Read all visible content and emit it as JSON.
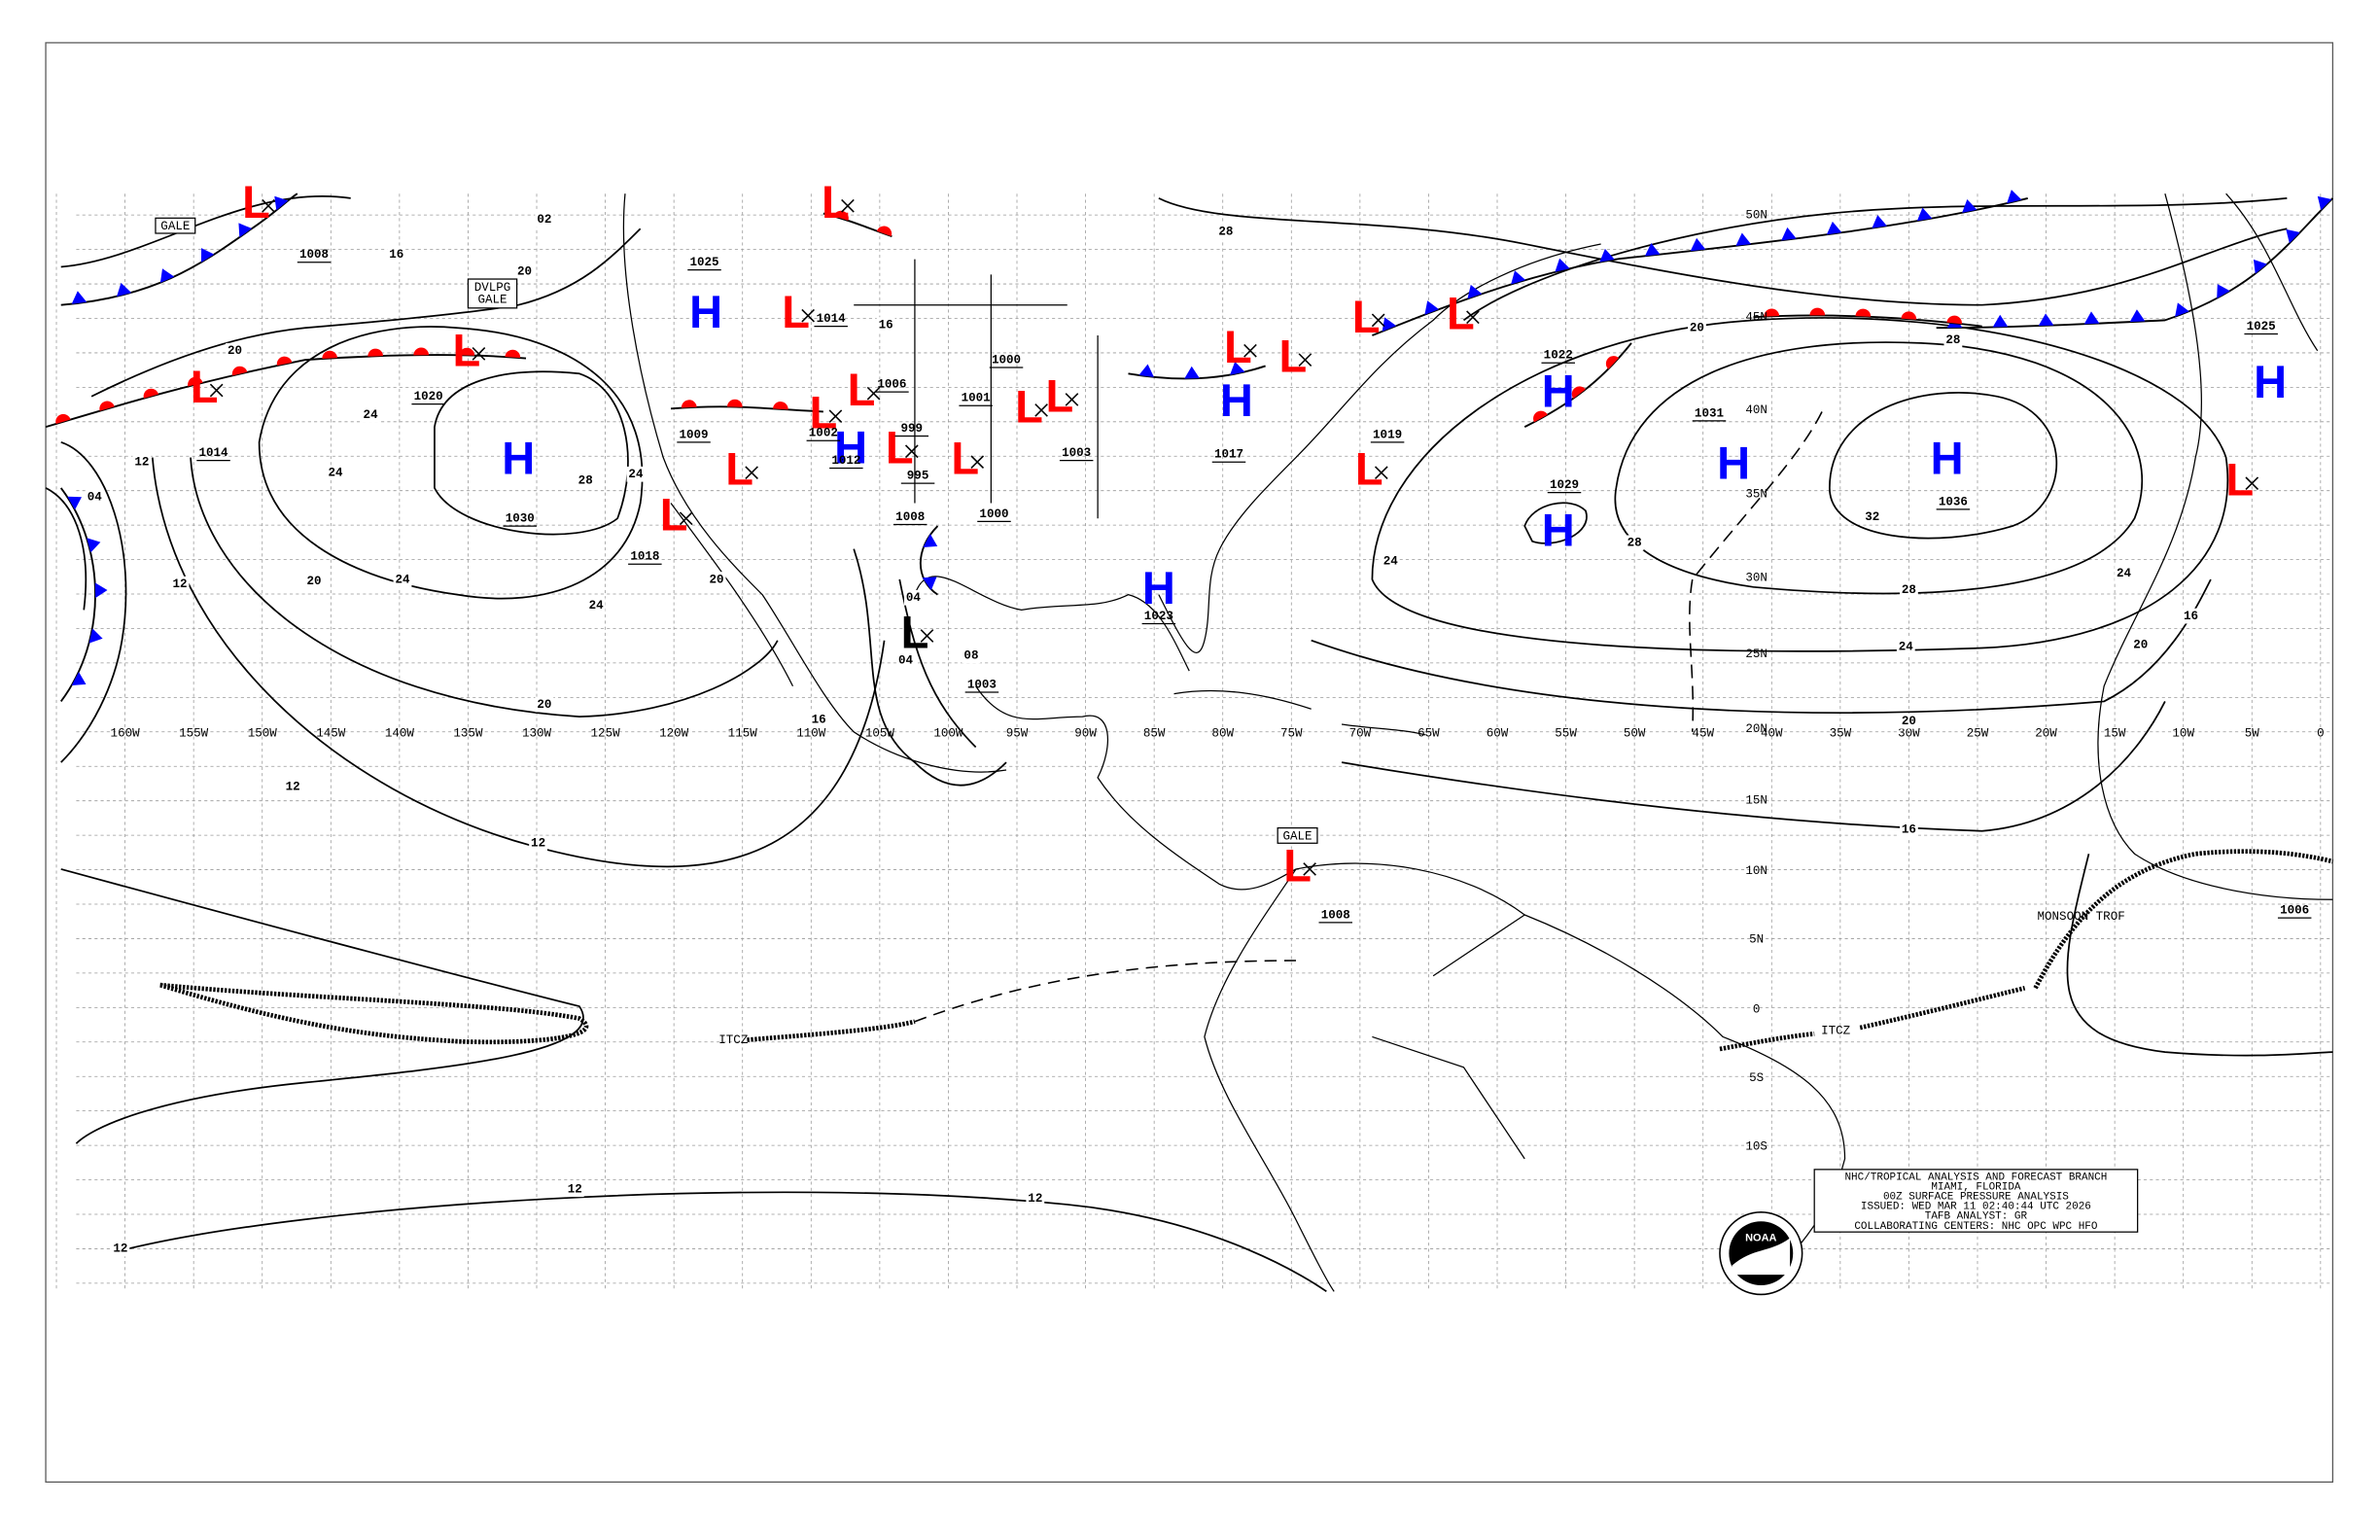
{
  "longitude_labels": [
    "160W",
    "155W",
    "150W",
    "145W",
    "140W",
    "135W",
    "130W",
    "125W",
    "120W",
    "115W",
    "110W",
    "105W",
    "100W",
    "95W",
    "90W",
    "85W",
    "80W",
    "75W",
    "70W",
    "65W",
    "60W",
    "55W",
    "50W",
    "45W",
    "40W",
    "35W",
    "30W",
    "25W",
    "20W",
    "15W",
    "10W",
    "5W",
    "0"
  ],
  "latitude_labels": [
    "50N",
    "45N",
    "40N",
    "35N",
    "30N",
    "25N",
    "20N",
    "15N",
    "10N",
    "5N",
    "0",
    "5S",
    "10S"
  ],
  "pressure_centers": [
    {
      "letter": "L",
      "color": "#ff0000"
    },
    {
      "letter": "L",
      "color": "#ff0000"
    },
    {
      "letter": "L",
      "color": "#ff0000"
    },
    {
      "letter": "L",
      "color": "#ff0000"
    },
    {
      "letter": "L",
      "color": "#ff0000"
    },
    {
      "letter": "L",
      "color": "#ff0000"
    },
    {
      "letter": "L",
      "color": "#ff0000"
    },
    {
      "letter": "L",
      "color": "#ff0000"
    },
    {
      "letter": "L",
      "color": "#ff0000"
    },
    {
      "letter": "L",
      "color": "#ff0000"
    },
    {
      "letter": "L",
      "color": "#ff0000"
    },
    {
      "letter": "L",
      "color": "#ff0000"
    },
    {
      "letter": "L",
      "color": "#ff0000"
    },
    {
      "letter": "L",
      "color": "#ff0000"
    },
    {
      "letter": "L",
      "color": "#ff0000"
    },
    {
      "letter": "L",
      "color": "#ff0000"
    },
    {
      "letter": "L",
      "color": "#ff0000"
    },
    {
      "letter": "L",
      "color": "#ff0000"
    },
    {
      "letter": "L",
      "color": "#ff0000"
    },
    {
      "letter": "L",
      "color": "#ff0000"
    },
    {
      "letter": "L",
      "color": "#000000"
    },
    {
      "letter": "H",
      "color": "#0000ff"
    },
    {
      "letter": "H",
      "color": "#0000ff"
    },
    {
      "letter": "H",
      "color": "#0000ff"
    },
    {
      "letter": "H",
      "color": "#0000ff"
    },
    {
      "letter": "H",
      "color": "#0000ff"
    },
    {
      "letter": "H",
      "color": "#0000ff"
    },
    {
      "letter": "H",
      "color": "#0000ff"
    },
    {
      "letter": "H",
      "color": "#0000ff"
    },
    {
      "letter": "H",
      "color": "#0000ff"
    },
    {
      "letter": "H",
      "color": "#0000ff"
    }
  ],
  "central_pressures": [
    "1008",
    "1020",
    "1014",
    "1030",
    "1018",
    "1009",
    "1025",
    "1002",
    "1014",
    "1012",
    "1006",
    "1000",
    "1001",
    "999",
    "995",
    "1000",
    "1008",
    "1003",
    "1017",
    "1003",
    "1023",
    "1019",
    "1022",
    "1029",
    "1031",
    "1036",
    "1025",
    "1008",
    "1006"
  ],
  "isobar_labels": [
    "16",
    "20",
    "02",
    "20",
    "24",
    "24",
    "28",
    "24",
    "24",
    "20",
    "24",
    "20",
    "20",
    "16",
    "12",
    "12",
    "04",
    "12",
    "12",
    "12",
    "12",
    "12",
    "04",
    "04",
    "08",
    "16",
    "28",
    "20",
    "28",
    "28",
    "32",
    "28",
    "24",
    "24",
    "24",
    "20",
    "20",
    "16",
    "16"
  ],
  "annotations": {
    "gale_1": "GALE",
    "developing_gale": [
      "DVLPG",
      "GALE"
    ],
    "gale_2": "GALE",
    "itcz_1": "ITCZ",
    "itcz_2": "ITCZ",
    "monsoon_trough": "MONSOON TROF"
  },
  "info_box": [
    "NHC/TROPICAL ANALYSIS AND FORECAST BRANCH",
    "MIAMI, FLORIDA",
    "00Z SURFACE PRESSURE ANALYSIS",
    "ISSUED: WED MAR 11 02:40:44 UTC 2026",
    "TAFB ANALYST: GR",
    "COLLABORATING CENTERS: NHC OPC WPC HFO"
  ],
  "logo": "NOAA"
}
